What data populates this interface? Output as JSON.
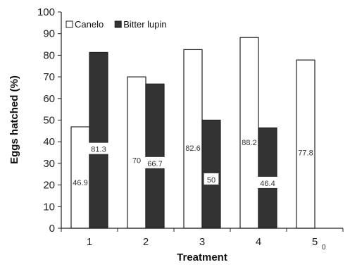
{
  "chart_data": {
    "type": "bar",
    "categories": [
      "1",
      "2",
      "3",
      "4",
      "5"
    ],
    "category_suffix": {
      "5": "0"
    },
    "series": [
      {
        "name": "Canelo",
        "values": [
          46.9,
          70,
          82.6,
          88.2,
          77.8
        ],
        "labels": [
          "46.9",
          "70",
          "82.6",
          "88.2",
          "77.8"
        ],
        "fill": "#ffffff"
      },
      {
        "name": "Bitter lupin",
        "values": [
          81.3,
          66.7,
          50,
          46.4,
          null
        ],
        "labels": [
          "81.3",
          "66.7",
          "50",
          "46.4",
          ""
        ],
        "fill": "#333333"
      }
    ],
    "xlabel": "Treatment",
    "ylabel": "Eggs hatched (%)",
    "ylim": [
      0,
      100
    ],
    "yticks": [
      "0",
      "10",
      "20",
      "30",
      "40",
      "50",
      "60",
      "70",
      "80",
      "90",
      "100"
    ],
    "grid": false,
    "legend_position": "top-left"
  }
}
